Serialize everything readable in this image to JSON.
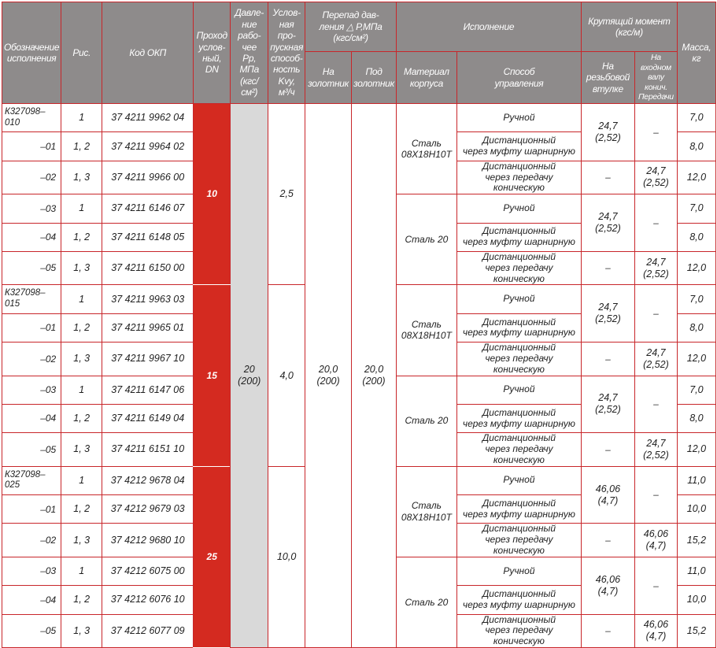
{
  "header": {
    "designation": "Обозначение\nисполнения",
    "ris": "Рис.",
    "code": "Код ОКП",
    "dn": "Проход\nуслов-\nный,\nDN",
    "pressure": "Давле-\nние\nрабо-\nчее\nPp, МПа\n(кгс/см²)",
    "kv": "Услов-\nная про-\nпускная\nспособ-\nность\nKvy,\nм³/ч",
    "dp": "Перепад дав-\nления △ Р,МПа\n(кгс/см²)",
    "dp_on": "На\nзолотник",
    "dp_under": "Под\nзолотник",
    "execution": "Исполнение",
    "material": "Материал\nкорпуса",
    "control": "Способ\nуправления",
    "torque": "Крутящий момент\n(кгс/м)",
    "torque_thread": "На\nрезьбовой\nвтулке",
    "torque_input": "На\nвходном\nвалу конич.\nПередачи",
    "mass": "Масса,\nкг"
  },
  "shared": {
    "pressure": "20\n(200)",
    "dp_on": "20,0\n(200)",
    "dp_under": "20,0\n(200)",
    "dash": "–"
  },
  "materials": [
    "Сталь\n08Х18Н10Т",
    "Сталь 20"
  ],
  "controls": [
    "Ручной",
    "Дистанционный\nчерез муфту шарнирную",
    "Дистанционный\nчерез передачу коническую"
  ],
  "groups": [
    {
      "dn": "10",
      "kv": "2,5",
      "torque": "24,7\n(2,52)",
      "rows": [
        {
          "des": "К327098–010",
          "ris": "1",
          "code": "37 4211 9962 04",
          "mass": "7,0"
        },
        {
          "des": "–01",
          "ris": "1, 2",
          "code": "37 4211 9964 02",
          "mass": "8,0"
        },
        {
          "des": "–02",
          "ris": "1, 3",
          "code": "37 4211 9966 00",
          "mass": "12,0"
        },
        {
          "des": "–03",
          "ris": "1",
          "code": "37 4211 6146 07",
          "mass": "7,0"
        },
        {
          "des": "–04",
          "ris": "1, 2",
          "code": "37 4211 6148 05",
          "mass": "8,0"
        },
        {
          "des": "–05",
          "ris": "1, 3",
          "code": "37 4211 6150 00",
          "mass": "12,0"
        }
      ]
    },
    {
      "dn": "15",
      "kv": "4,0",
      "torque": "24,7\n(2,52)",
      "rows": [
        {
          "des": "К327098–015",
          "ris": "1",
          "code": "37 4211 9963 03",
          "mass": "7,0"
        },
        {
          "des": "–01",
          "ris": "1, 2",
          "code": "37 4211 9965 01",
          "mass": "8,0"
        },
        {
          "des": "–02",
          "ris": "1, 3",
          "code": "37 4211 9967 10",
          "mass": "12,0"
        },
        {
          "des": "–03",
          "ris": "1",
          "code": "37 4211 6147 06",
          "mass": "7,0"
        },
        {
          "des": "–04",
          "ris": "1, 2",
          "code": "37 4211 6149 04",
          "mass": "8,0"
        },
        {
          "des": "–05",
          "ris": "1, 3",
          "code": "37 4211 6151 10",
          "mass": "12,0"
        }
      ]
    },
    {
      "dn": "25",
      "kv": "10,0",
      "torque": "46,06\n(4,7)",
      "rows": [
        {
          "des": "К327098–025",
          "ris": "1",
          "code": "37 4212 9678 04",
          "mass": "11,0"
        },
        {
          "des": "–01",
          "ris": "1, 2",
          "code": "37 4212 9679 03",
          "mass": "10,0"
        },
        {
          "des": "–02",
          "ris": "1, 3",
          "code": "37 4212 9680 10",
          "mass": "15,2"
        },
        {
          "des": "–03",
          "ris": "1",
          "code": "37 4212 6075 00",
          "mass": "11,0"
        },
        {
          "des": "–04",
          "ris": "1, 2",
          "code": "37 4212 6076 10",
          "mass": "10,0"
        },
        {
          "des": "–05",
          "ris": "1, 3",
          "code": "37 4212 6077 09",
          "mass": "15,2"
        }
      ]
    }
  ],
  "colors": {
    "border": "#c8262a",
    "header_bg": "#8e8b8b",
    "dn_bg": "#d42a20",
    "pressure_bg": "#d9d9d9"
  }
}
